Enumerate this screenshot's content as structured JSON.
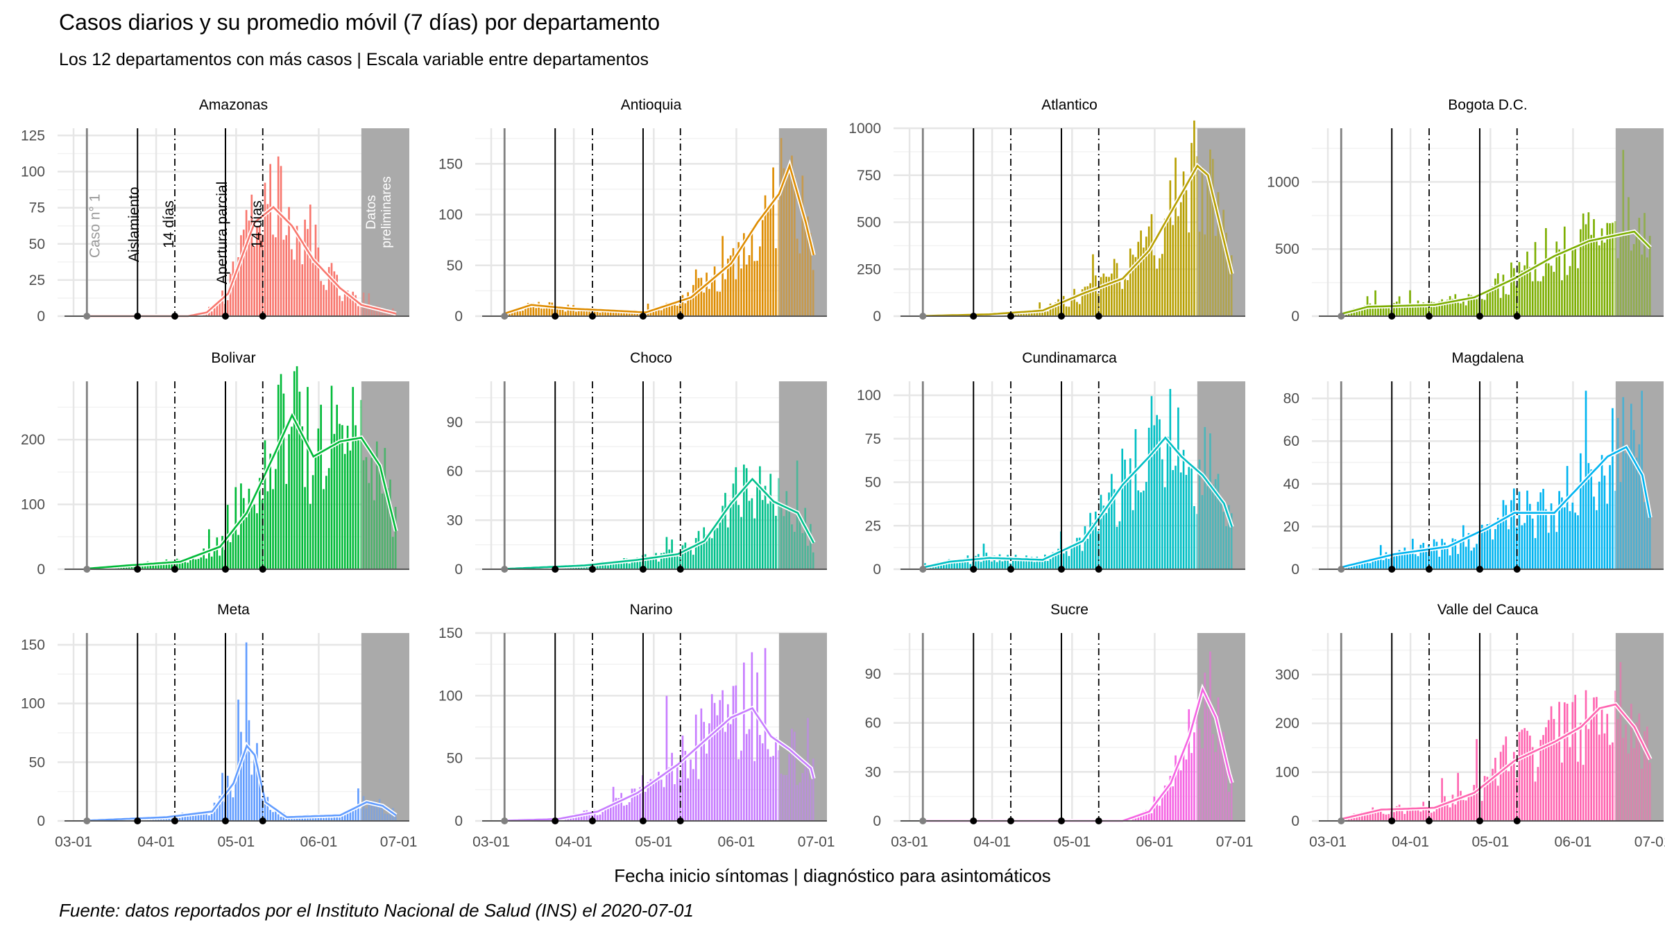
{
  "title": "Casos diarios y su promedio móvil (7 días) por departamento",
  "subtitle": "Los 12 departamentos con más casos | Escala variable entre departamentos",
  "xlabel": "Fecha inicio síntomas | diagnóstico para asintomáticos",
  "caption": "Fuente: datos reportados por el Instituto Nacional de Salud (INS) el 2020-07-01",
  "annotations": {
    "first_case": "Caso n° 1",
    "isolation": "Aislamiento",
    "fourteen": "14 días",
    "partial": "Apertura parcial",
    "fourteen2": "14 días",
    "preliminary_line1": "Datos",
    "preliminary_line2": "preliminares"
  },
  "chart_data": {
    "type": "bar",
    "x_ticks": [
      "03-01",
      "04-01",
      "05-01",
      "06-01",
      "07-01"
    ],
    "x_range": [
      "2020-02-24",
      "2020-07-05"
    ],
    "reference_dates": {
      "first_case": "2020-03-06",
      "isolation": "2020-03-25",
      "fourteen_days": "2020-04-08",
      "partial_opening": "2020-04-27",
      "fourteen_days_2": "2020-05-11",
      "preliminary_start": "2020-06-17"
    },
    "panels": [
      {
        "name": "Amazonas",
        "color": "#F8766D",
        "ylim": [
          0,
          130
        ],
        "yticks": [
          0,
          25,
          50,
          75,
          100,
          125
        ]
      },
      {
        "name": "Antioquia",
        "color": "#DE8C00",
        "ylim": [
          0,
          185
        ],
        "yticks": [
          0,
          50,
          100,
          150
        ]
      },
      {
        "name": "Atlantico",
        "color": "#B79F00",
        "ylim": [
          0,
          1000
        ],
        "yticks": [
          0,
          250,
          500,
          750,
          1000
        ]
      },
      {
        "name": "Bogota D.C.",
        "color": "#7CAE00",
        "ylim": [
          0,
          1400
        ],
        "yticks": [
          0,
          500,
          1000
        ]
      },
      {
        "name": "Bolivar",
        "color": "#00BA38",
        "ylim": [
          0,
          290
        ],
        "yticks": [
          0,
          100,
          200
        ]
      },
      {
        "name": "Choco",
        "color": "#00C08B",
        "ylim": [
          0,
          115
        ],
        "yticks": [
          0,
          30,
          60,
          90
        ]
      },
      {
        "name": "Cundinamarca",
        "color": "#00BFC4",
        "ylim": [
          0,
          108
        ],
        "yticks": [
          0,
          25,
          50,
          75,
          100
        ]
      },
      {
        "name": "Magdalena",
        "color": "#00B4F0",
        "ylim": [
          0,
          88
        ],
        "yticks": [
          0,
          20,
          40,
          60,
          80
        ]
      },
      {
        "name": "Meta",
        "color": "#619CFF",
        "ylim": [
          0,
          160
        ],
        "yticks": [
          0,
          50,
          100,
          150
        ]
      },
      {
        "name": "Narino",
        "color": "#C77CFF",
        "ylim": [
          0,
          150
        ],
        "yticks": [
          0,
          50,
          100,
          150
        ]
      },
      {
        "name": "Sucre",
        "color": "#F564E3",
        "ylim": [
          0,
          115
        ],
        "yticks": [
          0,
          30,
          60,
          90
        ]
      },
      {
        "name": "Valle del Cauca",
        "color": "#FF64B0",
        "ylim": [
          0,
          385
        ],
        "yticks": [
          0,
          100,
          200,
          300
        ]
      }
    ]
  }
}
